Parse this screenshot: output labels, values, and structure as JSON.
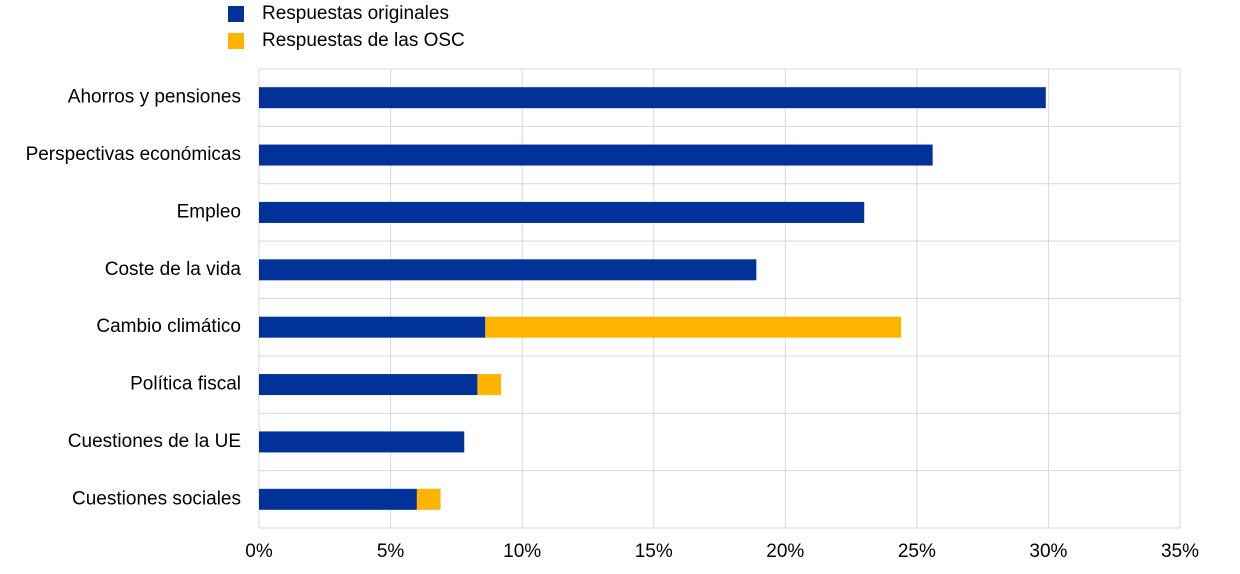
{
  "chart_data": {
    "type": "stacked_hbar",
    "categories": [
      "Ahorros y pensiones",
      "Perspectivas económicas",
      "Empleo",
      "Coste de la vida",
      "Cambio climático",
      "Política fiscal",
      "Cuestiones de la UE",
      "Cuestiones sociales"
    ],
    "series": [
      {
        "name": "Respuestas originales",
        "color": "#003299",
        "values": [
          29.9,
          25.6,
          23.0,
          18.9,
          8.6,
          8.3,
          7.8,
          6.0
        ]
      },
      {
        "name": "Respuestas de las OSC",
        "color": "#ffb400",
        "values": [
          0,
          0,
          0,
          0,
          15.8,
          0.9,
          0,
          0.9
        ]
      }
    ],
    "xlim": [
      0,
      35
    ],
    "xticks": [
      {
        "value": 0,
        "label": "0%"
      },
      {
        "value": 5,
        "label": "5%"
      },
      {
        "value": 10,
        "label": "10%"
      },
      {
        "value": 15,
        "label": "15%"
      },
      {
        "value": 20,
        "label": "20%"
      },
      {
        "value": 25,
        "label": "25%"
      },
      {
        "value": 30,
        "label": "30%"
      },
      {
        "value": 35,
        "label": "35%"
      }
    ],
    "grid": true
  }
}
